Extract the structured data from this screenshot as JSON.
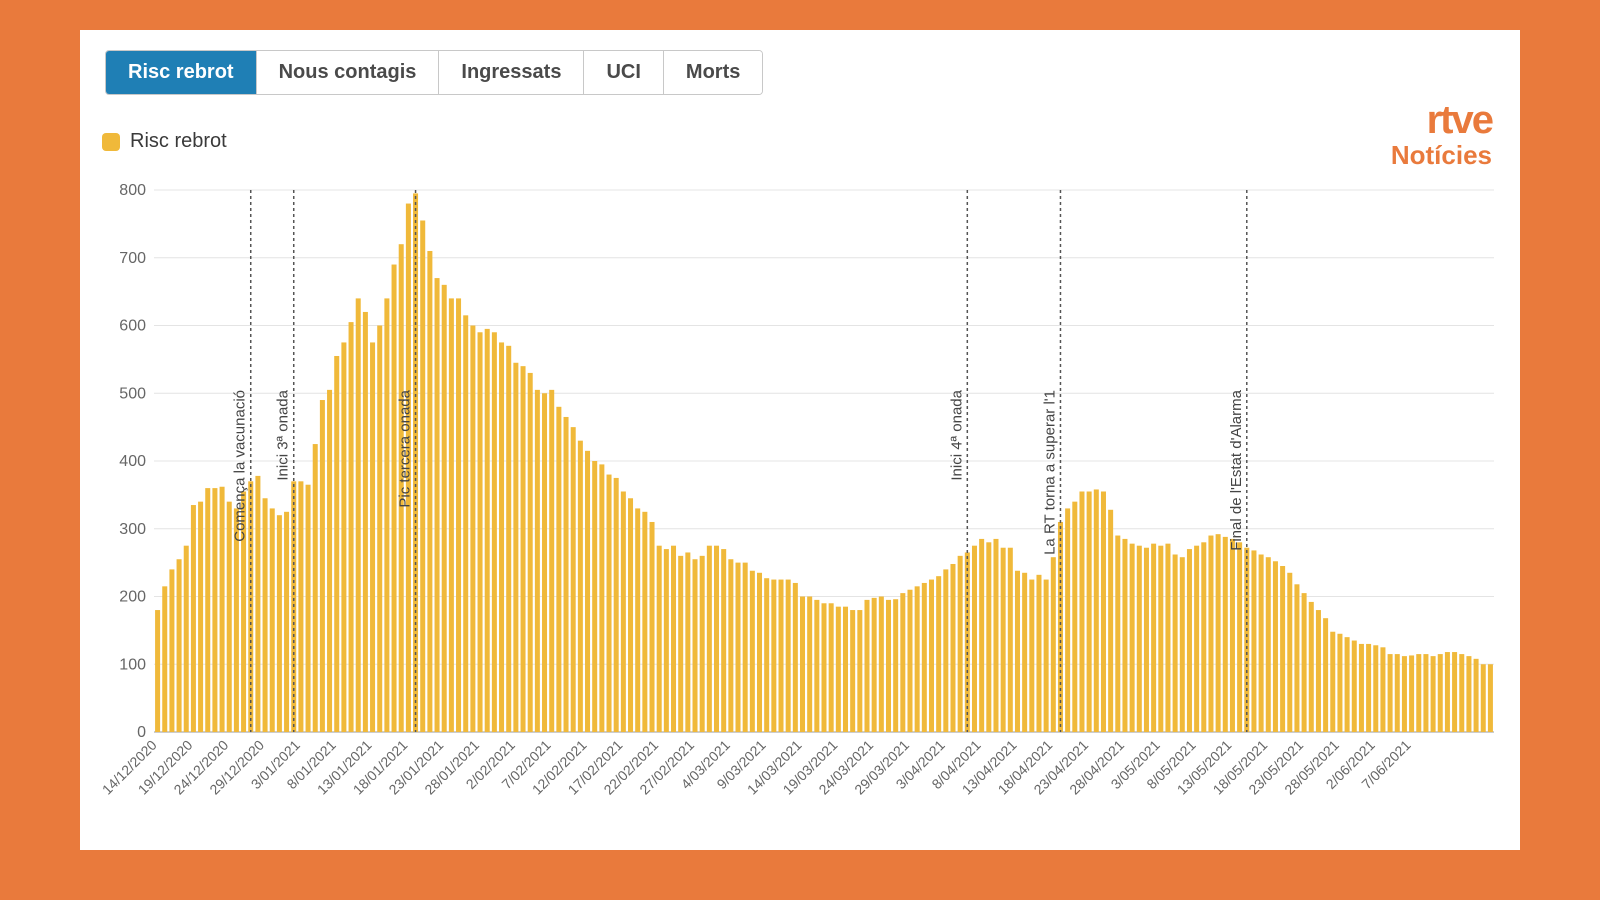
{
  "tabs": [
    {
      "label": "Risc rebrot",
      "active": true
    },
    {
      "label": "Nous contagis",
      "active": false
    },
    {
      "label": "Ingressats",
      "active": false
    },
    {
      "label": "UCI",
      "active": false
    },
    {
      "label": "Morts",
      "active": false
    }
  ],
  "legend_label": "Risc rebrot",
  "logo": {
    "main": "rtve",
    "sub": "Notícies",
    "color": "#e97a3c"
  },
  "background_color": "#e97a3c",
  "panel_color": "#ffffff",
  "chart": {
    "type": "bar",
    "bar_color": "#f0b93a",
    "grid_color": "#e4e4e4",
    "axis_color": "#999999",
    "text_color": "#666666",
    "background_color": "#ffffff",
    "ylim": [
      0,
      800
    ],
    "ytick_step": 100,
    "yticks": [
      0,
      100,
      200,
      300,
      400,
      500,
      600,
      700,
      800
    ],
    "label_fontsize": 16,
    "xlabel_fontsize": 14,
    "bar_width_ratio": 0.7,
    "values": [
      180,
      215,
      240,
      255,
      275,
      335,
      340,
      360,
      360,
      362,
      340,
      330,
      355,
      370,
      378,
      345,
      330,
      320,
      325,
      370,
      370,
      365,
      425,
      490,
      505,
      555,
      575,
      605,
      640,
      620,
      575,
      600,
      640,
      690,
      720,
      780,
      795,
      755,
      710,
      670,
      660,
      640,
      640,
      615,
      600,
      590,
      595,
      590,
      575,
      570,
      545,
      540,
      530,
      505,
      500,
      505,
      480,
      465,
      450,
      430,
      415,
      400,
      395,
      380,
      375,
      355,
      345,
      330,
      325,
      310,
      275,
      270,
      275,
      260,
      265,
      255,
      260,
      275,
      275,
      270,
      255,
      250,
      250,
      238,
      235,
      227,
      225,
      225,
      225,
      220,
      200,
      200,
      195,
      190,
      190,
      185,
      185,
      180,
      180,
      195,
      198,
      200,
      195,
      196,
      205,
      210,
      215,
      220,
      225,
      230,
      240,
      248,
      260,
      265,
      275,
      285,
      280,
      285,
      272,
      272,
      238,
      235,
      225,
      232,
      225,
      258,
      310,
      330,
      340,
      355,
      355,
      358,
      355,
      328,
      290,
      285,
      278,
      275,
      272,
      278,
      275,
      278,
      262,
      258,
      270,
      275,
      280,
      290,
      292,
      288,
      285,
      280,
      272,
      268,
      262,
      258,
      252,
      245,
      235,
      218,
      205,
      192,
      180,
      168,
      148,
      145,
      140,
      135,
      130,
      130,
      128,
      125,
      115,
      115,
      112,
      113,
      115,
      115,
      112,
      115,
      118,
      118,
      115,
      112,
      108,
      100,
      100
    ],
    "start_date": "2020-12-14",
    "xtick_step_days": 5,
    "xtick_labels": [
      "14/12/2020",
      "19/12/2020",
      "24/12/2020",
      "29/12/2020",
      "3/01/2021",
      "8/01/2021",
      "13/01/2021",
      "18/01/2021",
      "23/01/2021",
      "28/01/2021",
      "2/02/2021",
      "7/02/2021",
      "12/02/2021",
      "17/02/2021",
      "22/02/2021",
      "27/02/2021",
      "4/03/2021",
      "9/03/2021",
      "14/03/2021",
      "19/03/2021",
      "24/03/2021",
      "29/03/2021",
      "3/04/2021",
      "8/04/2021",
      "13/04/2021",
      "18/04/2021",
      "23/04/2021",
      "28/04/2021",
      "3/05/2021",
      "8/05/2021",
      "13/05/2021",
      "18/05/2021",
      "23/05/2021",
      "28/05/2021",
      "2/06/2021",
      "7/06/2021"
    ],
    "annotations": [
      {
        "index": 13,
        "label": "Comença la vacunació"
      },
      {
        "index": 19,
        "label": "Inici 3ª onada"
      },
      {
        "index": 36,
        "label": "Pic tercera onada"
      },
      {
        "index": 113,
        "label": "Inici 4ª onada"
      },
      {
        "index": 126,
        "label": "La RT torna a superar l'1"
      },
      {
        "index": 152,
        "label": "Final de l'Estat d'Alarma"
      }
    ]
  }
}
